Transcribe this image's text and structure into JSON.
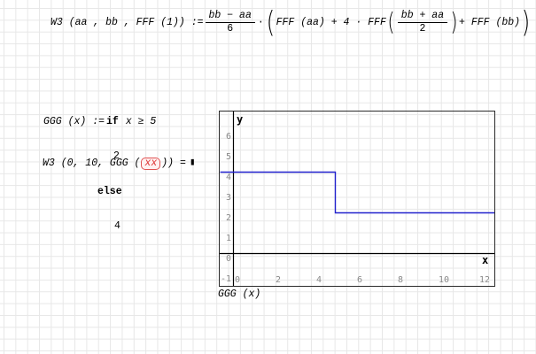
{
  "formulas": {
    "w3_def": {
      "lhs": "W3 (aa , bb , FFF (1)) :=",
      "frac1_num": "bb − aa",
      "frac1_den": "6",
      "times_dot": "·",
      "paren_open": "(",
      "paren_close": ")",
      "inner_left": "FFF (aa) + 4 · FFF",
      "frac2_num": "bb + aa",
      "frac2_den": "2",
      "inner_right": "+ FFF (bb)"
    },
    "ggg_def": {
      "lhs": "GGG (x) :=",
      "kw_if": "if",
      "condition": "x ≥ 5",
      "then_value": "2",
      "kw_else": "else",
      "else_value": "4"
    },
    "w3_eval": {
      "pre": "W3 (0, 10, GGG (",
      "error_token": "xx",
      "post": ")) =",
      "result_placeholder": "▮"
    }
  },
  "colors": {
    "curve": "#2121cd",
    "error_border": "#e05252",
    "error_text": "#dd3333",
    "tick_label": "#8a8a8a"
  },
  "plot": {
    "y_axis_letter": "y",
    "x_axis_letter": "x",
    "y_ticks": [
      "6",
      "5",
      "4",
      "3",
      "2",
      "1",
      "0",
      "-1"
    ],
    "x_ticks": [
      "0",
      "2",
      "4",
      "6",
      "8",
      "10",
      "12"
    ],
    "caption": "GGG (x)",
    "curve_color": "#2121cd",
    "chart_data": {
      "type": "line",
      "title": "GGG (x)",
      "xlabel": "x",
      "ylabel": "y",
      "xlim": [
        -0.65,
        12.85
      ],
      "ylim": [
        -1.6,
        6.95
      ],
      "x_tick_values": [
        0,
        2,
        4,
        6,
        8,
        10,
        12
      ],
      "y_tick_values": [
        6,
        5,
        4,
        3,
        2,
        1,
        0,
        -1
      ],
      "series": [
        {
          "name": "GGG(x)",
          "points": [
            [
              -0.65,
              4
            ],
            [
              5,
              4
            ],
            [
              5,
              2
            ],
            [
              12.85,
              2
            ]
          ]
        }
      ],
      "legend": "none",
      "grid": "worksheet grid visible through plot"
    }
  }
}
